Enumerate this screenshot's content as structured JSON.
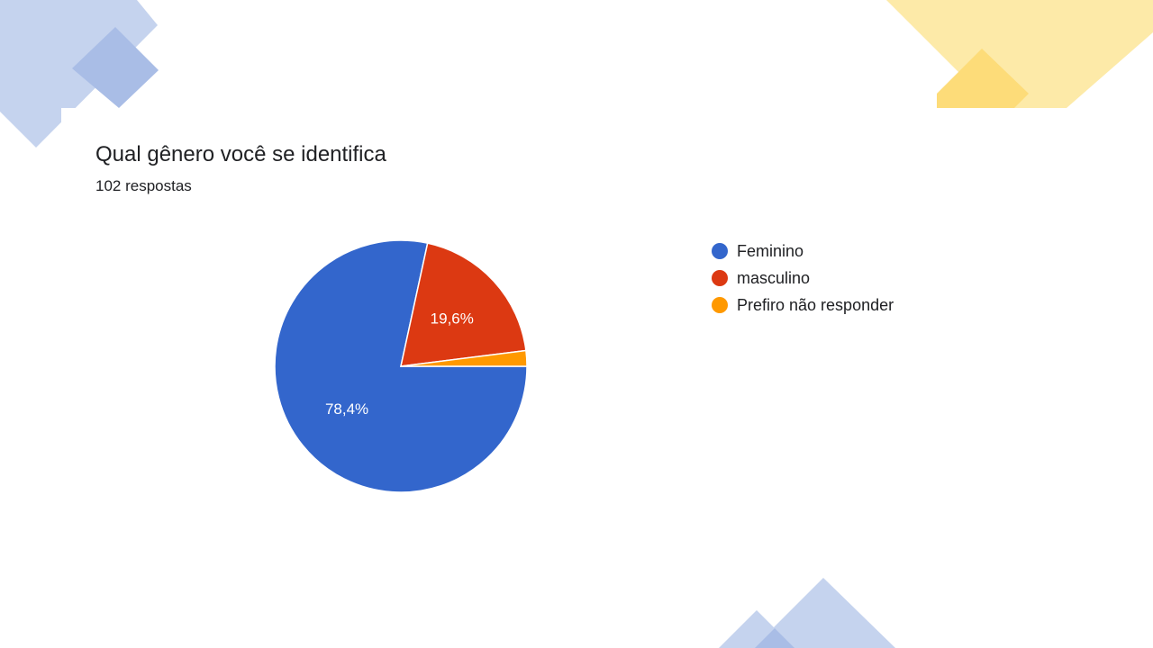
{
  "header": {
    "title": "Qual gênero você se identifica",
    "subtitle": "102 respostas"
  },
  "chart_data": {
    "type": "pie",
    "title": "Qual gênero você se identifica",
    "slices": [
      {
        "label": "Feminino",
        "value": 78.4,
        "display": "78,4%",
        "color": "#3366cc"
      },
      {
        "label": "masculino",
        "value": 19.6,
        "display": "19,6%",
        "color": "#dc3912"
      },
      {
        "label": "Prefiro não responder",
        "value": 2.0,
        "display": "",
        "color": "#ff9900"
      }
    ],
    "legend_position": "right"
  },
  "decoration_colors": {
    "blue": "#c5d3ee",
    "blue_dark": "#a9bde6",
    "yellow": "#fdeaa8",
    "yellow_dark": "#fddc79"
  }
}
